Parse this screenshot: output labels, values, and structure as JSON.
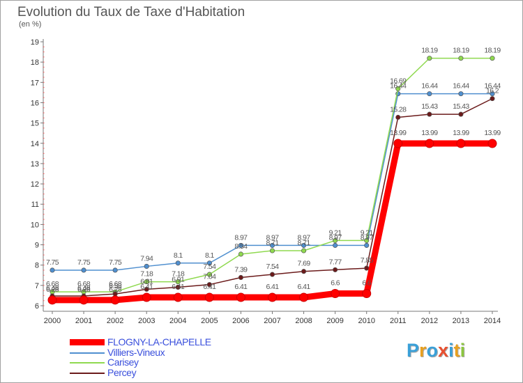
{
  "header": {
    "title": "Evolution du Taux de Taxe d'Habitation",
    "unit": "(en %)"
  },
  "chart_data": {
    "type": "line",
    "title": "Evolution du Taux de Taxe d'Habitation",
    "ylabel": "(en %)",
    "xlabel": "",
    "x": [
      "2000",
      "2001",
      "2002",
      "2003",
      "2004",
      "2005",
      "2006",
      "2007",
      "2008",
      "2009",
      "2010",
      "2011",
      "2012",
      "2013",
      "2014"
    ],
    "ylim": [
      6,
      19
    ],
    "yticks": [
      "6",
      "7",
      "8",
      "9",
      "10",
      "11",
      "12",
      "13",
      "14",
      "15",
      "16",
      "17",
      "18",
      "19"
    ],
    "grid": false,
    "legend_position": "bottom-left",
    "series": [
      {
        "name": "FLOGNY-LA-CHAPELLE",
        "color": "#ff0000",
        "values": [
          6.28,
          6.28,
          6.28,
          6.41,
          6.41,
          6.41,
          6.41,
          6.41,
          6.41,
          6.6,
          6.6,
          13.99,
          13.99,
          13.99,
          13.99
        ],
        "labels": [
          "6.28",
          "6.28",
          "6.28",
          "6.41",
          "6.41",
          "6.41",
          "6.41",
          "6.41",
          "6.41",
          "6.6",
          "6.6",
          "13.99",
          "13.99",
          "13.99",
          "13.99"
        ]
      },
      {
        "name": "Villiers-Vineux",
        "color": "#4f8fcf",
        "values": [
          7.75,
          7.75,
          7.75,
          7.94,
          8.1,
          8.1,
          8.97,
          8.97,
          8.97,
          8.97,
          8.97,
          16.44,
          16.44,
          16.44,
          16.44
        ],
        "labels": [
          "7.75",
          "7.75",
          "7.75",
          "7.94",
          "8.1",
          "8.1",
          "8.97",
          "8.97",
          "8.97",
          "8.97",
          "8.97",
          "16.44",
          "16.44",
          "16.44",
          "16.44"
        ]
      },
      {
        "name": "Carisey",
        "color": "#8fd94f",
        "values": [
          6.68,
          6.68,
          6.68,
          7.18,
          7.18,
          7.54,
          8.54,
          8.71,
          8.71,
          9.21,
          9.21,
          16.69,
          18.19,
          18.19,
          18.19
        ],
        "labels": [
          "6.68",
          "6.68",
          "6.68",
          "7.18",
          "7.18",
          "7.54",
          "8.54",
          "8.71",
          "8.71",
          "9.21",
          "9.21",
          "16.69",
          "18.19",
          "18.19",
          "18.19"
        ]
      },
      {
        "name": "Percey",
        "color": "#6b1a1a",
        "values": [
          6.48,
          6.48,
          6.58,
          6.81,
          6.91,
          7.04,
          7.39,
          7.54,
          7.69,
          7.77,
          7.85,
          15.28,
          15.43,
          15.43,
          16.2
        ],
        "labels": [
          "6.48",
          "6.48",
          "6.58",
          "6.81",
          "6.91",
          "7.04",
          "7.39",
          "7.54",
          "7.69",
          "7.77",
          "7.85",
          "15.28",
          "15.43",
          "15.43",
          "16.2"
        ]
      }
    ]
  },
  "logo": {
    "letters": [
      "P",
      "r",
      "o",
      "x",
      "i",
      "t",
      "i"
    ],
    "colors": [
      "#3aa0d8",
      "#e8a020",
      "#3aa0d8",
      "#e85030",
      "#3aa0d8",
      "#e8a020",
      "#8cc63f"
    ]
  }
}
